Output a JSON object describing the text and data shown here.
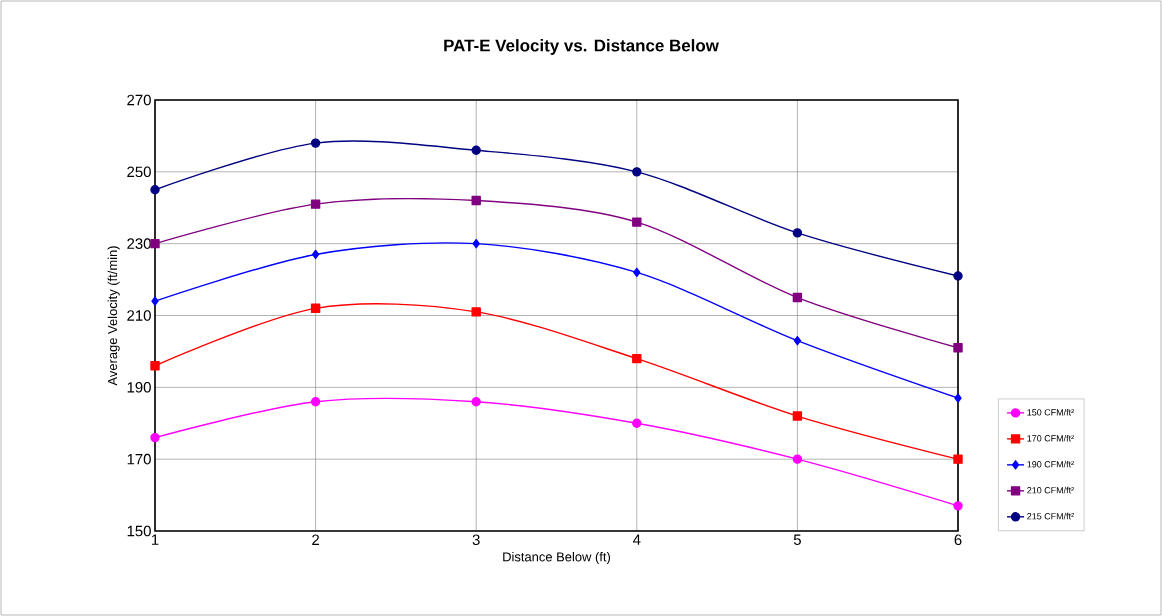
{
  "chart_data": {
    "type": "line",
    "title": "PAT-E  Velocity vs. Distance Below",
    "xlabel": "Distance Below (ft)",
    "ylabel": "Average Velocity (ft/min)",
    "x": [
      1,
      2,
      3,
      4,
      5,
      6
    ],
    "xlim": [
      1,
      6
    ],
    "xticks": [
      1,
      2,
      3,
      4,
      5,
      6
    ],
    "ylim": [
      150,
      270
    ],
    "yticks": [
      150,
      170,
      190,
      210,
      230,
      250,
      270
    ],
    "grid": true,
    "legend": "right",
    "line_style": "solid",
    "series": [
      {
        "name": "150 CFM/ft²",
        "color": "#ff00ff",
        "marker": "circle",
        "values": [
          176,
          186,
          186,
          180,
          170,
          157
        ]
      },
      {
        "name": "170 CFM/ft²",
        "color": "#ff0000",
        "marker": "square",
        "values": [
          196,
          212,
          211,
          198,
          182,
          170
        ]
      },
      {
        "name": "190 CFM/ft²",
        "color": "#0000ff",
        "marker": "diamond",
        "values": [
          214,
          227,
          230,
          222,
          203,
          187
        ]
      },
      {
        "name": "210 CFM/ft²",
        "color": "#800080",
        "marker": "square",
        "values": [
          230,
          241,
          242,
          236,
          215,
          201
        ]
      },
      {
        "name": "215 CFM/ft²",
        "color": "#000080",
        "marker": "circle",
        "values": [
          245,
          258,
          256,
          250,
          233,
          221
        ]
      }
    ]
  }
}
